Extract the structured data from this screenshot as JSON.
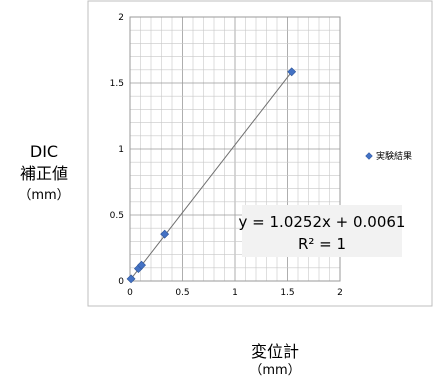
{
  "chart_data": {
    "type": "scatter",
    "series": [
      {
        "name": "実験結果",
        "color": "#4472c4",
        "marker": "diamond",
        "points": [
          {
            "x": 0.01,
            "y": 0.016
          },
          {
            "x": 0.08,
            "y": 0.094
          },
          {
            "x": 0.11,
            "y": 0.12
          },
          {
            "x": 0.33,
            "y": 0.355
          },
          {
            "x": 1.54,
            "y": 1.585
          }
        ]
      }
    ],
    "trendline": {
      "type": "linear",
      "slope": 1.0252,
      "intercept": 0.0061,
      "x_range": [
        0,
        1.54
      ]
    },
    "equation_label": "y = 1.0252x + 0.0061",
    "r2_label": "R² = 1",
    "xlim": [
      0,
      2
    ],
    "ylim": [
      0,
      2
    ],
    "x_ticks": [
      {
        "v": 0,
        "label": "0"
      },
      {
        "v": 0.5,
        "label": "0.5"
      },
      {
        "v": 1,
        "label": "1"
      },
      {
        "v": 1.5,
        "label": "1.5"
      },
      {
        "v": 2,
        "label": "2"
      }
    ],
    "y_ticks": [
      {
        "v": 0,
        "label": "0"
      },
      {
        "v": 0.5,
        "label": "0.5"
      },
      {
        "v": 1,
        "label": "1"
      },
      {
        "v": 1.5,
        "label": "1.5"
      },
      {
        "v": 2,
        "label": "2"
      }
    ],
    "minor_step": 0.1,
    "grid": true,
    "legend_position": "right",
    "xlabel": {
      "line1": "変位計",
      "line2": "（mm）"
    },
    "ylabel": {
      "line1": "DIC",
      "line2": "補正値",
      "line3": "（mm）"
    }
  }
}
